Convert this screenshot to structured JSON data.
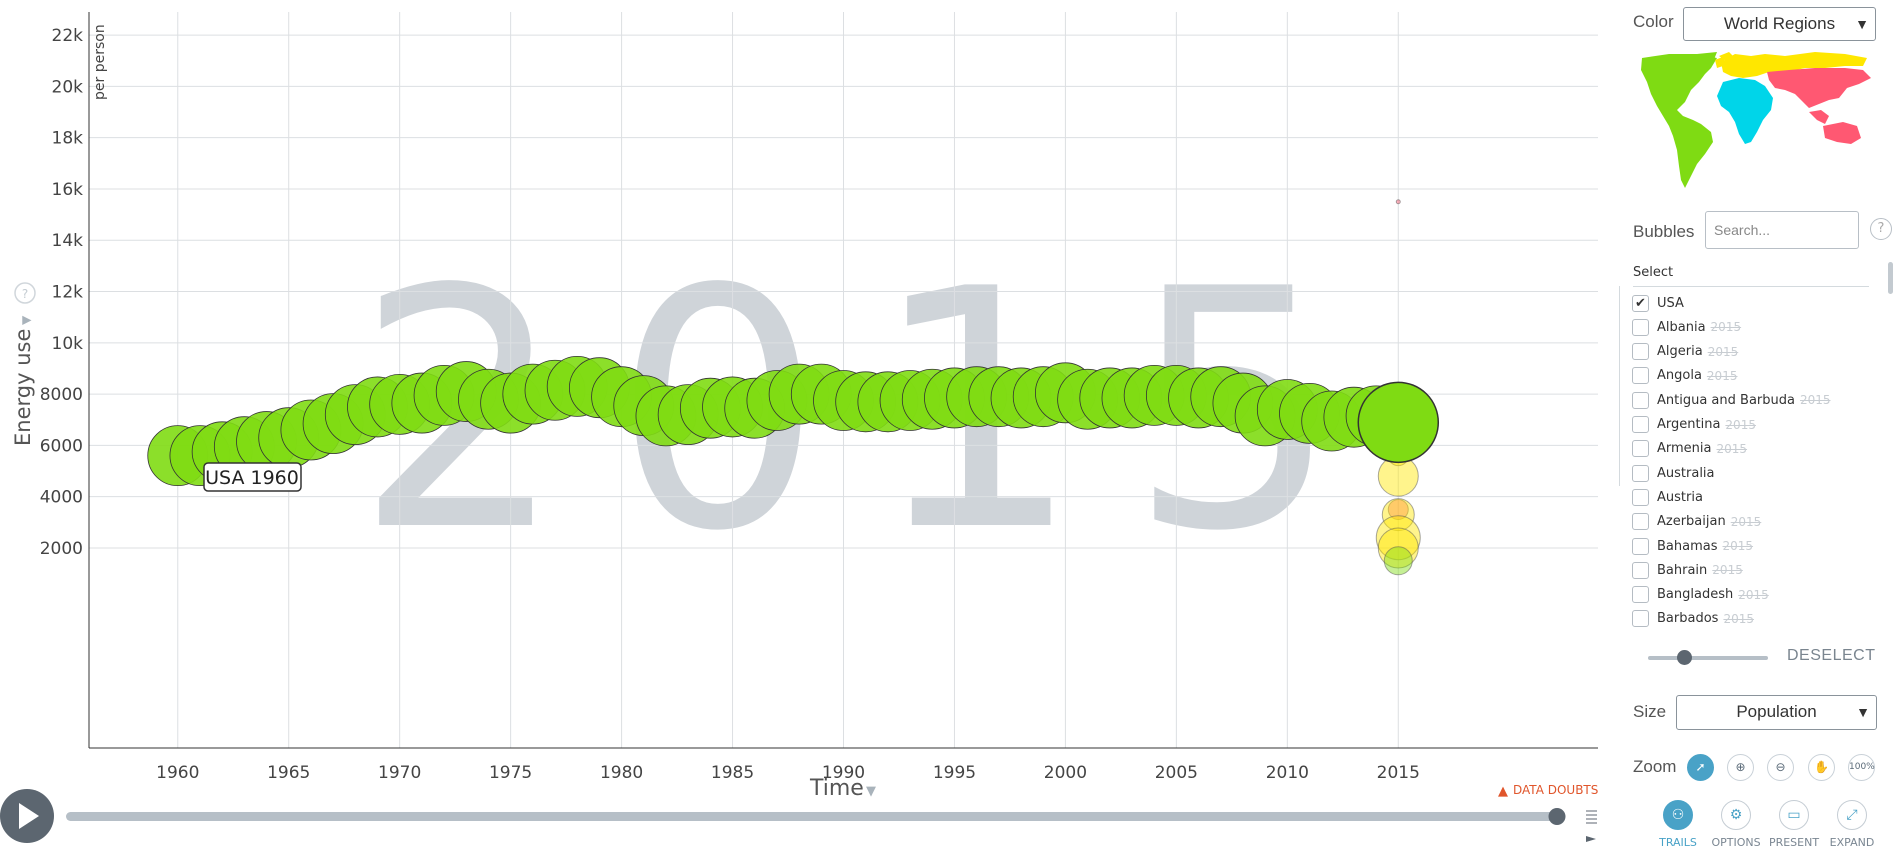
{
  "chart_data": {
    "type": "scatter",
    "title": "",
    "big_year": "2015",
    "ylabel": "Energy use",
    "yunit": "per person",
    "xlabel": "Time",
    "xlim": [
      1956,
      2024
    ],
    "ylim": [
      -5800,
      22900
    ],
    "y_ticks": [
      2000,
      4000,
      6000,
      8000,
      10000,
      12000,
      14000,
      16000,
      18000,
      20000,
      22000
    ],
    "y_tick_labels": [
      "2000",
      "4000",
      "6000",
      "8000",
      "10k",
      "12k",
      "14k",
      "16k",
      "18k",
      "20k",
      "22k"
    ],
    "x_ticks": [
      1960,
      1965,
      1970,
      1975,
      1980,
      1985,
      1990,
      1995,
      2000,
      2005,
      2010,
      2015
    ],
    "grid": true,
    "trail_label": "USA 1960",
    "series": [
      {
        "name": "USA",
        "color": "#7fdb13",
        "x": [
          1960,
          1961,
          1962,
          1963,
          1964,
          1965,
          1966,
          1967,
          1968,
          1969,
          1970,
          1971,
          1972,
          1973,
          1974,
          1975,
          1976,
          1977,
          1978,
          1979,
          1980,
          1981,
          1982,
          1983,
          1984,
          1985,
          1986,
          1987,
          1988,
          1989,
          1990,
          1991,
          1992,
          1993,
          1994,
          1995,
          1996,
          1997,
          1998,
          1999,
          2000,
          2001,
          2002,
          2003,
          2004,
          2005,
          2006,
          2007,
          2008,
          2009,
          2010,
          2011,
          2012,
          2013,
          2014,
          2015
        ],
        "values": [
          5600,
          5600,
          5750,
          5950,
          6150,
          6300,
          6600,
          6850,
          7200,
          7500,
          7600,
          7650,
          7950,
          8100,
          7800,
          7650,
          8000,
          8150,
          8300,
          8250,
          7900,
          7550,
          7150,
          7200,
          7450,
          7500,
          7450,
          7750,
          8000,
          8000,
          7750,
          7700,
          7700,
          7750,
          7800,
          7850,
          7900,
          7900,
          7850,
          7900,
          8050,
          7800,
          7850,
          7850,
          7950,
          7950,
          7850,
          7900,
          7650,
          7150,
          7400,
          7250,
          6950,
          7100,
          7150,
          6900
        ]
      }
    ],
    "other_bubbles_2015": [
      {
        "y": 7600,
        "color": "#7fdb13"
      },
      {
        "y": 5600,
        "color": "#ffe700"
      },
      {
        "y": 4800,
        "color": "#ffe700"
      },
      {
        "y": 3500,
        "color": "#ff5872"
      },
      {
        "y": 3300,
        "color": "#ffe700"
      },
      {
        "y": 2400,
        "color": "#ffe700"
      },
      {
        "y": 2000,
        "color": "#ffe700"
      },
      {
        "y": 1500,
        "color": "#7fdb13"
      },
      {
        "y": 15500,
        "color": "#ff5872"
      }
    ],
    "colors": {
      "america": "#7fdb13",
      "africa": "#00d5e9",
      "asia": "#ff5872",
      "europe": "#ffe700"
    }
  },
  "controls": {
    "color_label": "Color",
    "color_value": "World Regions",
    "bubbles_label": "Bubbles",
    "search_placeholder": "Search...",
    "help": "?",
    "select_label": "Select",
    "deselect": "DESELECT",
    "size_label": "Size",
    "size_value": "Population",
    "zoom_label": "Zoom",
    "zoom_100": "100%",
    "data_doubts": "DATA DOUBTS",
    "trails": "TRAILS",
    "options": "OPTIONS",
    "present": "PRESENT",
    "expand": "EXPAND"
  },
  "countries": [
    {
      "name": "USA",
      "checked": true,
      "year": ""
    },
    {
      "name": "Albania",
      "checked": false,
      "year": "2015"
    },
    {
      "name": "Algeria",
      "checked": false,
      "year": "2015"
    },
    {
      "name": "Angola",
      "checked": false,
      "year": "2015"
    },
    {
      "name": "Antigua and Barbuda",
      "checked": false,
      "year": "2015"
    },
    {
      "name": "Argentina",
      "checked": false,
      "year": "2015"
    },
    {
      "name": "Armenia",
      "checked": false,
      "year": "2015"
    },
    {
      "name": "Australia",
      "checked": false,
      "year": ""
    },
    {
      "name": "Austria",
      "checked": false,
      "year": ""
    },
    {
      "name": "Azerbaijan",
      "checked": false,
      "year": "2015"
    },
    {
      "name": "Bahamas",
      "checked": false,
      "year": "2015"
    },
    {
      "name": "Bahrain",
      "checked": false,
      "year": "2015"
    },
    {
      "name": "Bangladesh",
      "checked": false,
      "year": "2015"
    },
    {
      "name": "Barbados",
      "checked": false,
      "year": "2015"
    }
  ],
  "timeline": {
    "progress": 1.0
  }
}
